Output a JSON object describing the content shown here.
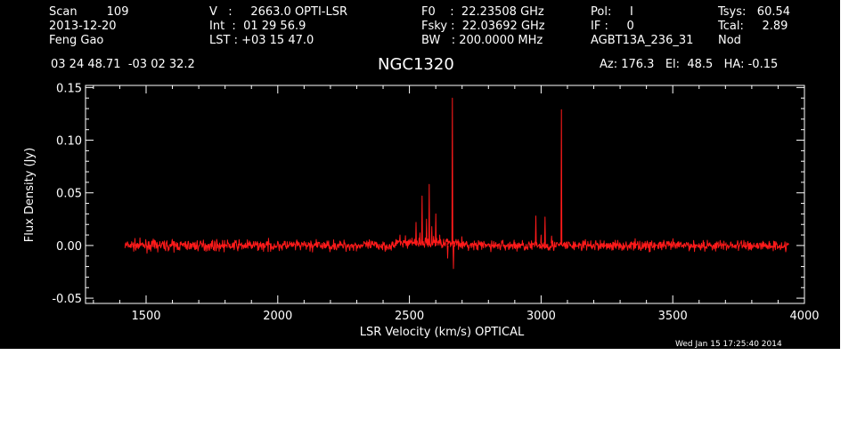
{
  "header": {
    "col1": [
      "Scan        109",
      "2013-12-20",
      "Feng Gao"
    ],
    "col2": [
      "V   :     2663.0 OPTI-LSR",
      "Int  :  01 29 56.9",
      "LST : +03 15 47.0"
    ],
    "col3": [
      "F0    :  22.23508 GHz",
      "Fsky :  22.03692 GHz",
      "BW   : 200.0000 MHz"
    ],
    "col4": [
      "Pol:     I",
      "IF :     0",
      "AGBT13A_236_31"
    ],
    "col5": [
      "Tsys:   60.54",
      "Tcal:     2.89",
      "Nod"
    ],
    "coords": "03 24 48.71  -03 02 32.2",
    "source": "NGC1320",
    "pointing": "Az: 176.3   El:  48.5   HA: -0.15",
    "timestamp": "Wed Jan 15 17:25:40 2014"
  },
  "colors": {
    "background": "#000000",
    "trace": "#ff1a1a",
    "axes": "#ffffff"
  },
  "chart_data": {
    "type": "line",
    "title": "NGC1320",
    "xlabel": "LSR Velocity (km/s) OPTICAL",
    "ylabel": "Flux Density (Jy)",
    "xlim": [
      1270,
      4000
    ],
    "ylim": [
      -0.055,
      0.152
    ],
    "xticks": [
      1500,
      2000,
      2500,
      3000,
      3500,
      4000
    ],
    "xtick_labels": [
      "1500",
      "2000",
      "2500",
      "3000",
      "3500",
      "4000"
    ],
    "yticks": [
      -0.05,
      0.0,
      0.05,
      0.1,
      0.15
    ],
    "ytick_labels": [
      "-0.05",
      "0.00",
      "0.05",
      "0.10",
      "0.15"
    ],
    "series": [
      {
        "x_range": [
          1420,
          3940
        ],
        "noise_rms": 0.0025,
        "peaks": [
          {
            "x": 2510,
            "y": 0.007
          },
          {
            "x": 2525,
            "y": 0.022
          },
          {
            "x": 2540,
            "y": 0.012
          },
          {
            "x": 2548,
            "y": 0.047
          },
          {
            "x": 2565,
            "y": 0.025
          },
          {
            "x": 2575,
            "y": 0.058
          },
          {
            "x": 2585,
            "y": 0.018
          },
          {
            "x": 2600,
            "y": 0.03
          },
          {
            "x": 2615,
            "y": 0.01
          },
          {
            "x": 2630,
            "y": 0.006
          },
          {
            "x": 2645,
            "y": -0.012
          },
          {
            "x": 2663,
            "y": 0.14
          },
          {
            "x": 2667,
            "y": -0.022
          },
          {
            "x": 2980,
            "y": 0.028
          },
          {
            "x": 3000,
            "y": 0.01
          },
          {
            "x": 3015,
            "y": 0.027
          },
          {
            "x": 3040,
            "y": 0.009
          },
          {
            "x": 3077,
            "y": 0.129
          }
        ]
      }
    ]
  }
}
